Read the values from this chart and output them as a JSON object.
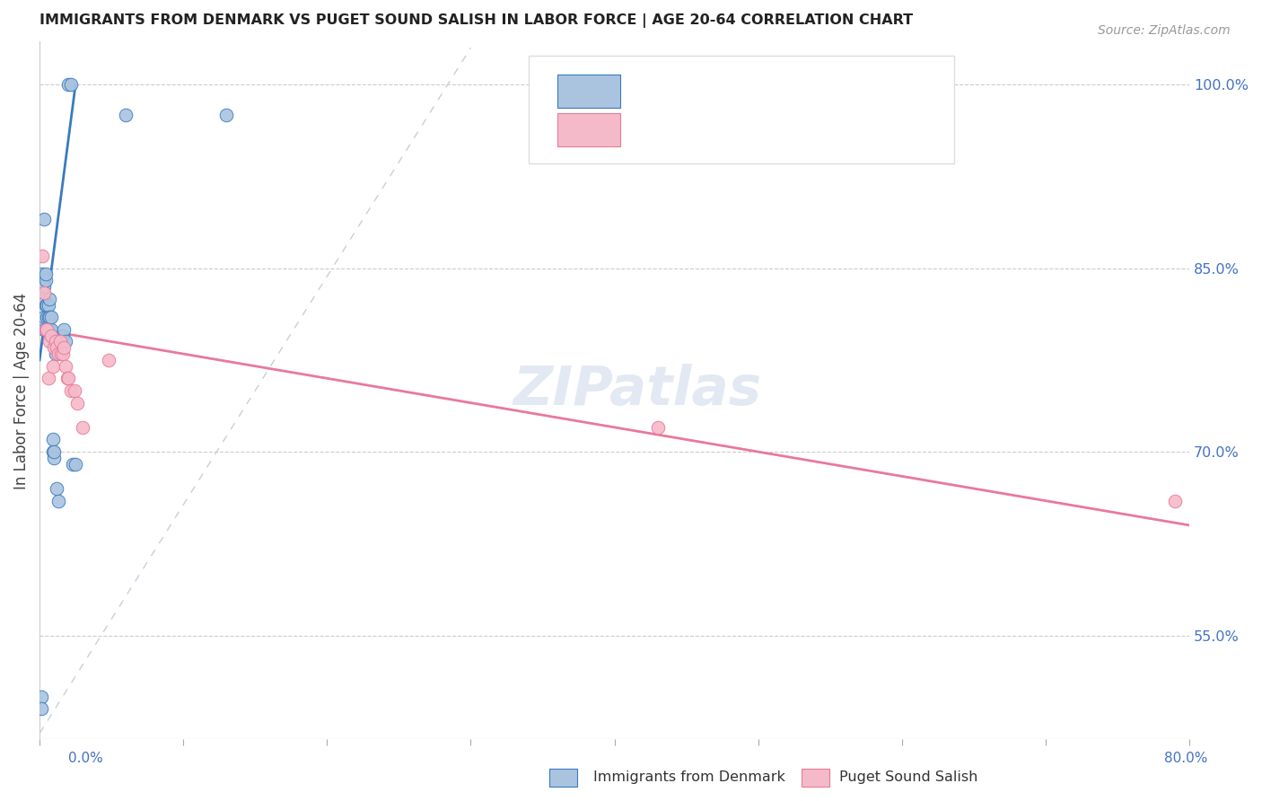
{
  "title": "IMMIGRANTS FROM DENMARK VS PUGET SOUND SALISH IN LABOR FORCE | AGE 20-64 CORRELATION CHART",
  "source": "Source: ZipAtlas.com",
  "ylabel": "In Labor Force | Age 20-64",
  "ytick_labels": [
    "55.0%",
    "70.0%",
    "85.0%",
    "100.0%"
  ],
  "ytick_values": [
    0.55,
    0.7,
    0.85,
    1.0
  ],
  "xlim": [
    0.0,
    0.8
  ],
  "ylim": [
    0.465,
    1.035
  ],
  "blue_color": "#aac4e0",
  "pink_color": "#f5bac9",
  "blue_line_color": "#3a7abf",
  "pink_line_color": "#e8799a",
  "watermark": "ZIPatlas",
  "denmark_x": [
    0.001,
    0.001,
    0.002,
    0.003,
    0.003,
    0.003,
    0.003,
    0.003,
    0.004,
    0.004,
    0.004,
    0.005,
    0.005,
    0.005,
    0.006,
    0.006,
    0.006,
    0.007,
    0.007,
    0.007,
    0.008,
    0.008,
    0.009,
    0.009,
    0.01,
    0.01,
    0.011,
    0.012,
    0.013,
    0.015,
    0.016,
    0.017,
    0.018,
    0.02,
    0.022,
    0.023,
    0.025,
    0.06,
    0.13
  ],
  "denmark_y": [
    0.5,
    0.49,
    0.845,
    0.8,
    0.81,
    0.825,
    0.835,
    0.89,
    0.84,
    0.845,
    0.82,
    0.8,
    0.81,
    0.82,
    0.8,
    0.81,
    0.82,
    0.8,
    0.81,
    0.825,
    0.8,
    0.81,
    0.7,
    0.71,
    0.695,
    0.7,
    0.78,
    0.67,
    0.66,
    0.795,
    0.795,
    0.8,
    0.79,
    1.0,
    1.0,
    0.69,
    0.69,
    0.975,
    0.975
  ],
  "salish_x": [
    0.002,
    0.003,
    0.004,
    0.005,
    0.006,
    0.007,
    0.008,
    0.009,
    0.01,
    0.011,
    0.012,
    0.013,
    0.014,
    0.015,
    0.016,
    0.017,
    0.018,
    0.019,
    0.02,
    0.022,
    0.024,
    0.026,
    0.03,
    0.048,
    0.43,
    0.79
  ],
  "salish_y": [
    0.86,
    0.83,
    0.8,
    0.8,
    0.76,
    0.79,
    0.795,
    0.77,
    0.785,
    0.79,
    0.785,
    0.78,
    0.79,
    0.78,
    0.78,
    0.785,
    0.77,
    0.76,
    0.76,
    0.75,
    0.75,
    0.74,
    0.72,
    0.775,
    0.72,
    0.66
  ],
  "blue_trend_x": [
    0.0,
    0.025
  ],
  "blue_trend_y": [
    0.775,
    1.0
  ],
  "pink_trend_x": [
    0.0,
    0.8
  ],
  "pink_trend_y": [
    0.8,
    0.64
  ]
}
